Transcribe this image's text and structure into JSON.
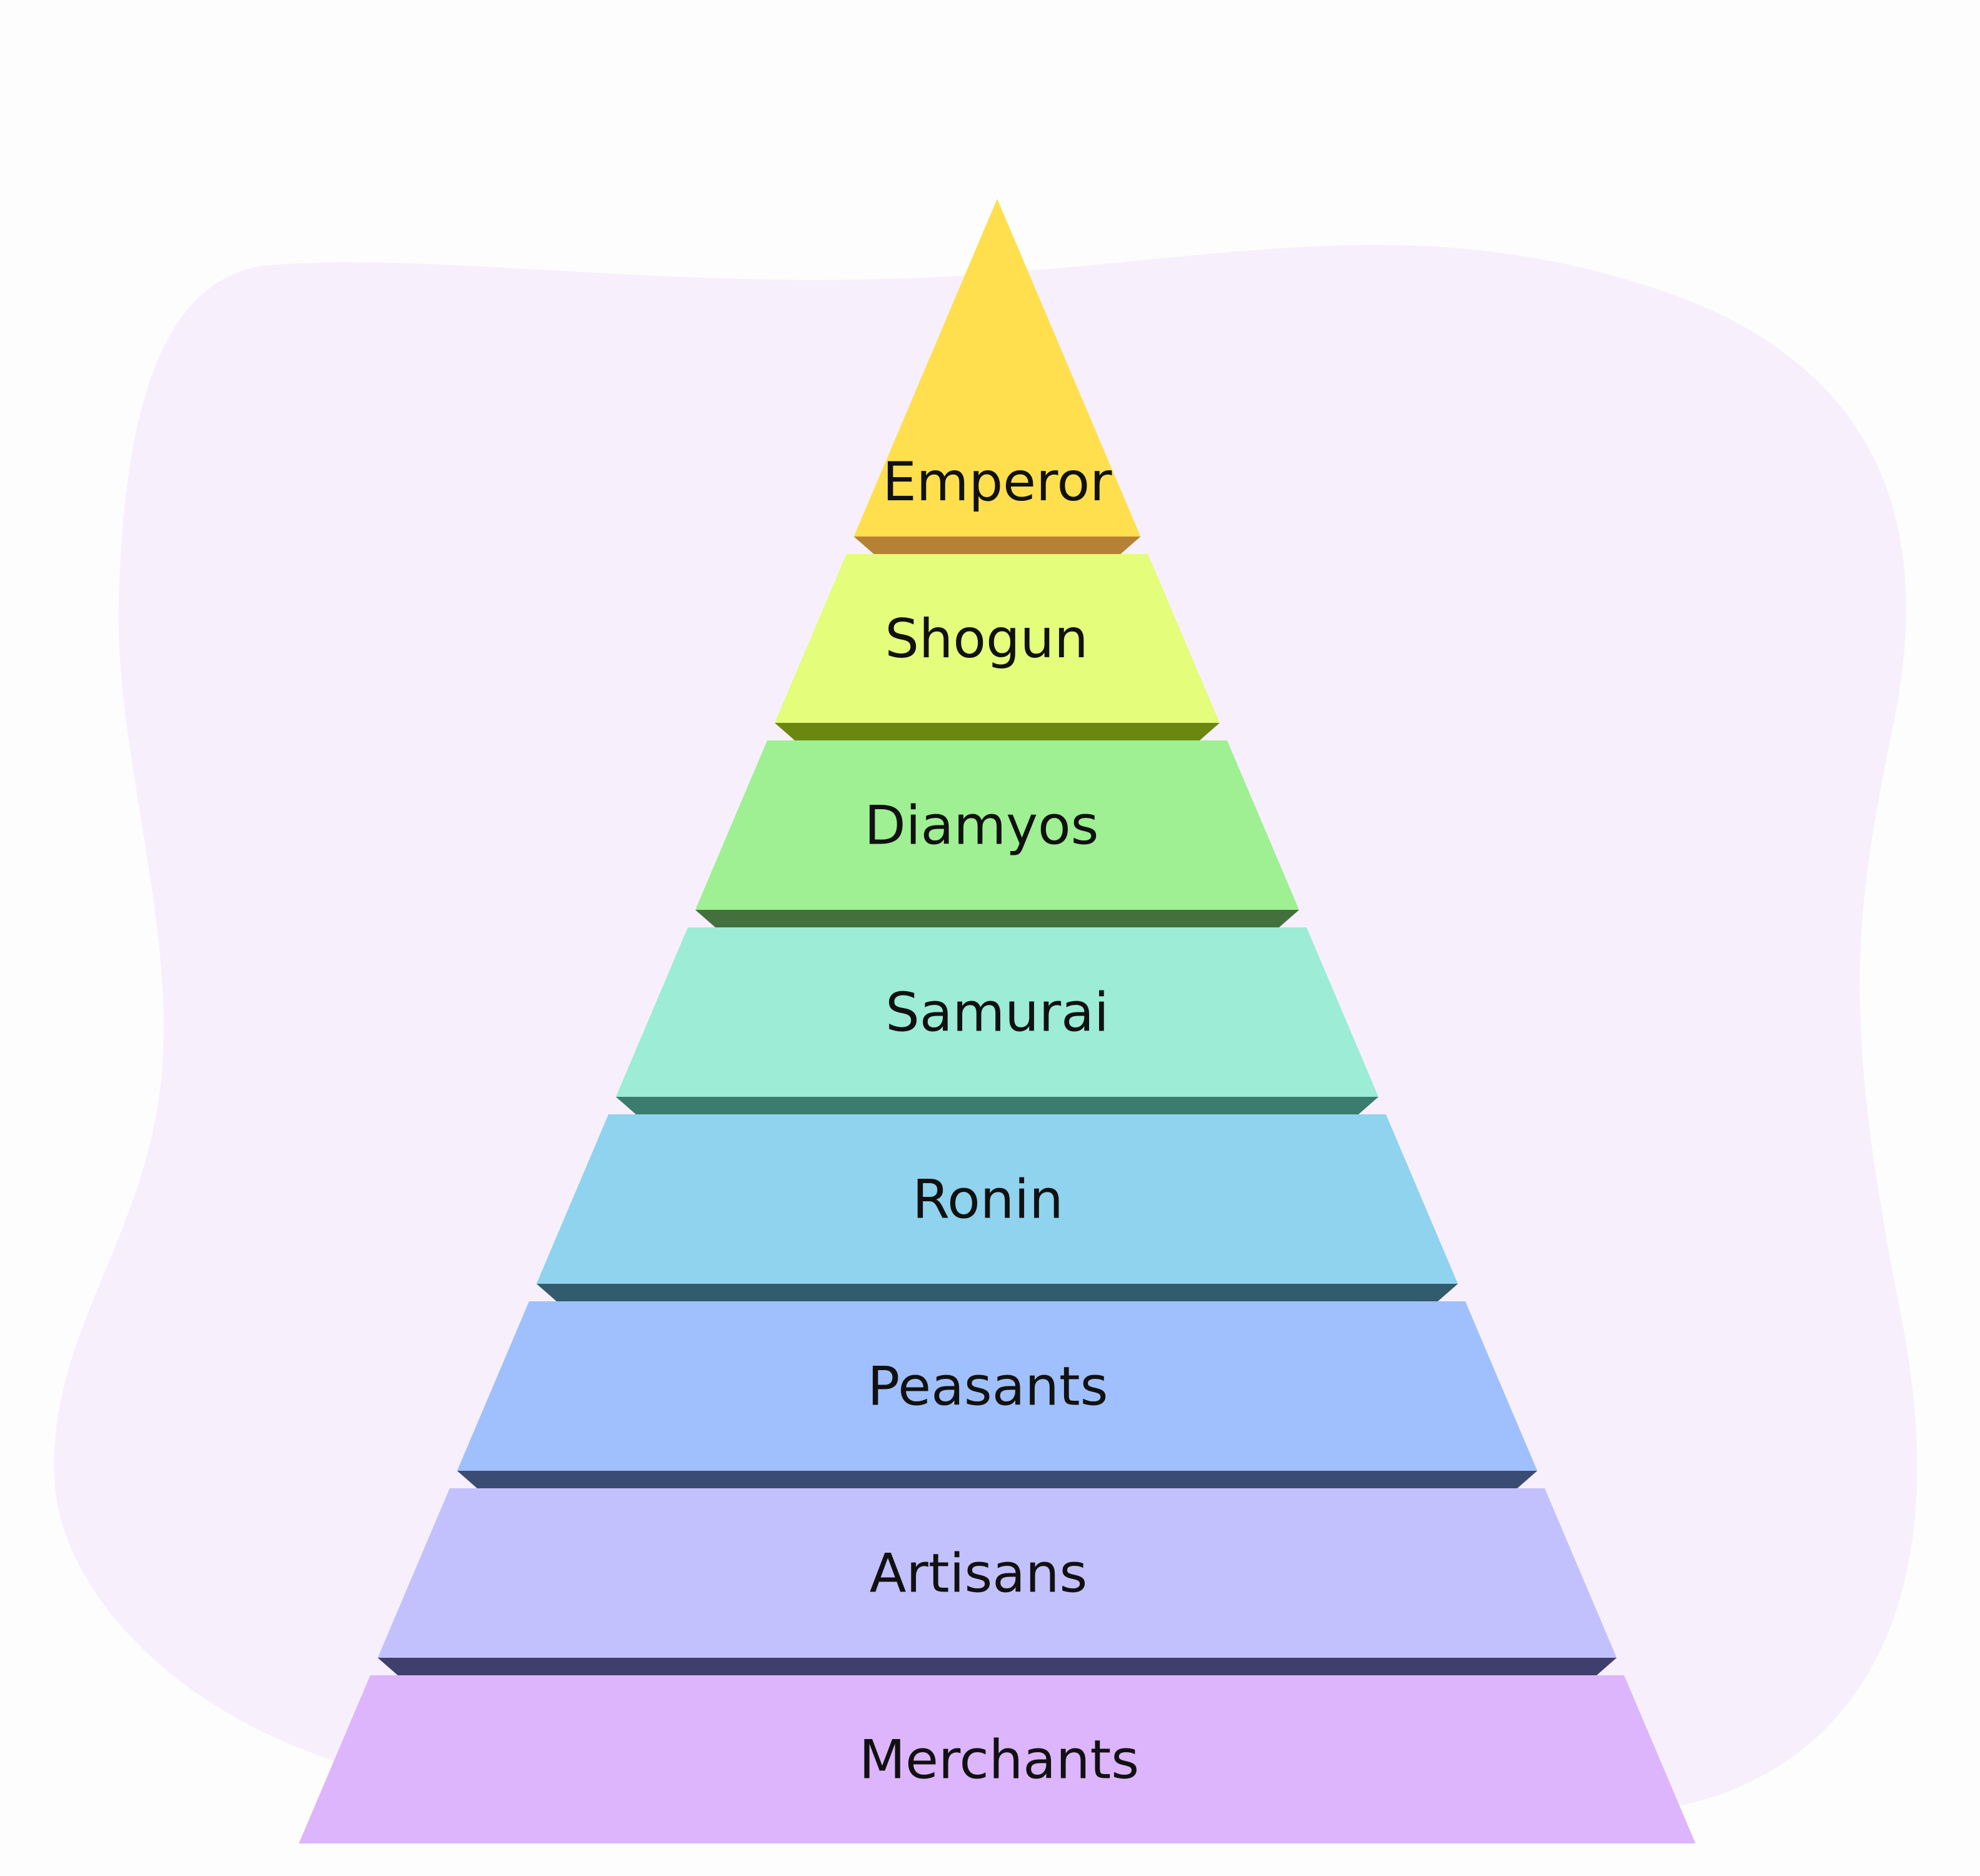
{
  "background": {
    "page_color": "#fdfdfd",
    "blob_color": "#f7f0fc"
  },
  "pyramid": {
    "tiers": [
      {
        "label": "Emperor",
        "face": "#ffdf4d",
        "edge": "#b58235"
      },
      {
        "label": "Shogun",
        "face": "#e4fd7b",
        "edge": "#6c8710"
      },
      {
        "label": "Diamyos",
        "face": "#9ef092",
        "edge": "#44703d"
      },
      {
        "label": "Samurai",
        "face": "#9cecd6",
        "edge": "#3a7c6d"
      },
      {
        "label": "Ronin",
        "face": "#8fd3ee",
        "edge": "#335b6e"
      },
      {
        "label": "Peasants",
        "face": "#a0c0fd",
        "edge": "#3a4c74"
      },
      {
        "label": "Artisans",
        "face": "#c3c1fd",
        "edge": "#403e6c"
      },
      {
        "label": "Merchants",
        "face": "#ddb5fc",
        "edge": "#5a4474"
      }
    ]
  }
}
